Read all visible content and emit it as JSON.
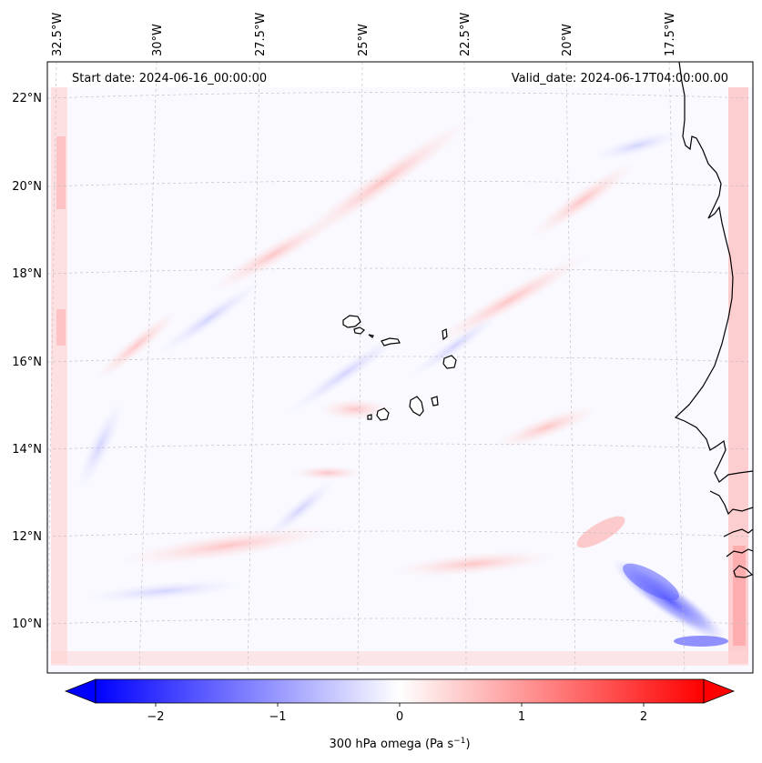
{
  "map": {
    "start_date": "Start date: 2024-06-16_00:00:00",
    "valid_date": "Valid_date: 2024-06-17T04:00:00.00",
    "lon_labels": [
      "32.5°W",
      "30°W",
      "27.5°W",
      "25°W",
      "22.5°W",
      "20°W",
      "17.5°W"
    ],
    "lat_labels": [
      "22°N",
      "20°N",
      "18°N",
      "16°N",
      "14°N",
      "12°N",
      "10°N"
    ],
    "islands": [
      "santo-antao",
      "sao-vicente",
      "santa-luzia",
      "sao-nicolau",
      "sal",
      "boa-vista",
      "maio",
      "santiago",
      "fogo",
      "brava"
    ]
  },
  "colorbar": {
    "label": "300 hPa omega (Pa s",
    "label_sup": "−1",
    "label_close": ")",
    "ticks": [
      "−2",
      "−1",
      "0",
      "1",
      "2"
    ],
    "colors": {
      "negative": "#0000ff",
      "zero": "#ffffff",
      "positive": "#ff0000"
    }
  }
}
